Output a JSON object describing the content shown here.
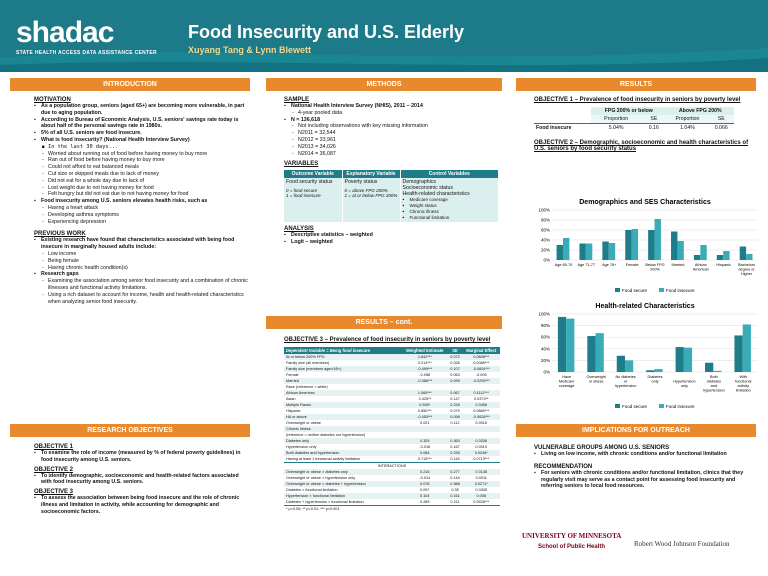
{
  "header": {
    "logo": "shadac",
    "logo_sub": "STATE HEALTH ACCESS DATA ASSISTANCE CENTER",
    "title": "Food Insecurity and U.S. Elderly",
    "authors": "Xuyang Tang & Lynn Blewett"
  },
  "intro": {
    "bar": "INTRODUCTION",
    "motivation_title": "MOTIVATION",
    "m1": "As a population group, seniors (aged 65+) are becoming more vulnerable, in part due to aging population.",
    "m2": "According to Bureau of Economic Analysis, U.S. seniors' savings rate today is about half of the personal savings rate in 1980s.",
    "m3": "5% of all U.S. seniors are food insecure.",
    "m4": "What is food insecurity? (National Health Interview Survey)",
    "m4a": "In the last 30 days...",
    "m4items": [
      "Worried about running out of food before having money to buy more",
      "Ran out of food before having money to buy more",
      "Could not afford to eat balanced meals",
      "Cut size or skipped meals due to lack of money",
      "Did not eat for a whole day due to lack of",
      "Lost weight due to not having money for food",
      "Felt hungry but did not eat due to not having money for food"
    ],
    "m5": "Food insecurity among U.S. seniors elevates health risks, such as",
    "m5items": [
      "Having a heart attack",
      "Developing asthma symptoms",
      "Experiencing depression"
    ],
    "prev_title": "PREVIOUS WORK",
    "p1": "Existing research have found that characteristics associated with being food insecure in marginally housed adults include:",
    "p1items": [
      "Low income",
      "Being female",
      "Having chronic health condition(s)"
    ],
    "p2": "Research gaps",
    "p2items": [
      "Examining the association among senior food insecurity and a combination of chronic illnesses and functional activity limitations.",
      "Using a rich dataset to account for income, health and health-related characteristics when analyzing senior food insecurity."
    ]
  },
  "objectives": {
    "bar": "RESEARCH OBJECTIVES",
    "o1t": "OBJECTIVE 1",
    "o1": "To examine the role of income (measured by % of federal poverty guidelines) in food insecurity among U.S. seniors.",
    "o2t": "OBJECTIVE 2",
    "o2": "To identify demographic, socioeconomic and health-related factors associated with food insecurity among U.S. seniors.",
    "o3t": "OBJECTIVE 3",
    "o3": "To assess the association between being food insecure and the role of chronic illness and limitation in activity, while accounting for demographic and socioeconomic factors."
  },
  "methods": {
    "bar": "METHODS",
    "sample_title": "SAMPLE",
    "s1": "National Health Interview Survey (NHIS), 2011 – 2014",
    "s1a": "4-year pooled data",
    "s2": "N = 136,618",
    "s2items": [
      "Not including observations with key missing information",
      "N2011 = 32,544",
      "N2012 = 33,961",
      "N2013 = 34,026",
      "N2014 = 36,087"
    ],
    "var_title": "VARIABLES",
    "vh": [
      "Outcome Variable",
      "Explanatory Variable",
      "Control Variables"
    ],
    "v1a": "Food security status",
    "v1b": "0 = food secure\n1 = food insecure",
    "v2a": "Poverty status",
    "v2b": "0 = above FPG 200%\n1 = at or below FPG 200%",
    "v3a": "Demographics",
    "v3b": "Socioeconomic status",
    "v3c": "Health-related characteristics",
    "v3items": [
      "Medicare coverage",
      "Weight status",
      "Chronic illness",
      "Functional limitation"
    ],
    "analysis_title": "ANALYSIS",
    "a1": "Descriptive statistics – weighted",
    "a2": "Logit – weighted"
  },
  "results2": {
    "bar": "RESULTS – cont.",
    "obj3": "OBJECTIVE 3 – Prevalence of food insecurity in seniors by poverty level",
    "th": [
      "Dependent Variable = Being food insecure",
      "Weighted Estimate",
      "SE",
      "Marginal Effect"
    ],
    "rows": [
      [
        "At or below 200% FPG",
        "1.842***",
        "0.072",
        "0.0808***"
      ],
      [
        "Family size (all members)",
        "0.214***",
        "0.026",
        "0.0085***"
      ],
      [
        "Family size (members aged 65+)",
        "-0.499***",
        "0.107",
        "-0.0604***"
      ],
      [
        "Female",
        "-0.058",
        "0.063",
        "-0.005"
      ],
      [
        "Married",
        "-0.366***",
        "0.099",
        "-0.0295***"
      ],
      [
        "Race (reference = white)",
        "",
        "",
        ""
      ],
      [
        "African American",
        "1.065***",
        "0.067",
        "0.1112***"
      ],
      [
        "Asian",
        "0.425**",
        "0.147",
        "0.0373**"
      ],
      [
        "Multiple Races",
        "0.505*",
        "0.228",
        "0.0456"
      ],
      [
        "Hispanic",
        "0.850***",
        "0.079",
        "0.0860***"
      ],
      [
        "HA or above",
        "-0.453***",
        "0.098",
        "-0.0628***"
      ],
      [
        "Overweight or obese",
        "0.021",
        "0.112",
        "0.0016"
      ],
      [
        "Chronic illness",
        "",
        "",
        ""
      ],
      [
        "(reference = neither diabetes nor hypertension)",
        "",
        "",
        ""
      ],
      [
        "Diabetes only",
        "0.329",
        "0.363",
        "0.0208"
      ],
      [
        "Hypertension only",
        "-0.016",
        "0.167",
        "0.0019"
      ],
      [
        "Both diabetes and hypertension",
        "0.084",
        "0.235",
        "0.0246*"
      ],
      [
        "Having at least 1 functional activity limitation",
        "0.715***",
        "0.115",
        "0.0713***"
      ]
    ],
    "inter": "INTERACTIONS",
    "rows2": [
      [
        "Overweight or obese × diabetes only",
        "0.216",
        "0.277",
        "0.0138"
      ],
      [
        "Overweight or obese × hypertension only",
        "-0.014",
        "0.144",
        "0.0011"
      ],
      [
        "Overweight or obese × diabetes + hypertension",
        "0.076",
        "0.388",
        "0.0271*"
      ],
      [
        "Diabetes × functional limitation",
        "0.097",
        "0.35",
        "0.0345"
      ],
      [
        "Hypertension × functional limitation",
        "0.104",
        "0.161",
        "0.008"
      ],
      [
        "Diabetes + hypertension × functional limitation",
        "0.289",
        "0.211",
        "0.0526***"
      ]
    ],
    "note": "* p<0.05; ** p<0.01; *** p<0.001"
  },
  "results": {
    "bar": "RESULTS",
    "obj1": "OBJECTIVE 1 – Prevalence of food insecurity in seniors by poverty level",
    "t1h": [
      "FPG 200% or below",
      "Above FPG 200%"
    ],
    "t1sub": [
      "Proportion",
      "SE",
      "Proportion",
      "SE"
    ],
    "t1row": [
      "Food insecure",
      "5.04%",
      "0.16",
      "1.04%",
      "0.066"
    ],
    "obj2": "OBJECTIVE 2 – Demographic, socioeconomic and health characteristics of U.S. seniors by food security status"
  },
  "implications": {
    "bar": "IMPLICATIONS FOR OUTREACH",
    "vt": "VULNERABLE GROUPS AMONG U.S. SENIORS",
    "v1": "Living on low income, with chronic conditions and/or functional limitation",
    "rt": "RECOMMENDATION",
    "r1": "For seniors with chronic conditions and/or functional limitation, clinics that they regularly visit may serve as a contact point for assessing food insecurity and referring seniors to local food resources."
  },
  "footer": {
    "umn": "UNIVERSITY OF MINNESOTA",
    "sph": "School of Public Health",
    "rwj": "Robert Wood Johnson Foundation"
  },
  "chart_data": [
    {
      "type": "bar",
      "title": "Demographics and SES Characteristics",
      "categories": [
        "Age 65-70",
        "Age 71-77",
        "Age 78+",
        "Female",
        "Below FPG 200%",
        "Married",
        "African American",
        "Hispanic",
        "Bachelors degree or Higher"
      ],
      "series": [
        {
          "name": "Food secure",
          "values": [
            30,
            33,
            37,
            60,
            60,
            57,
            10,
            10,
            27
          ]
        },
        {
          "name": "Food insecure",
          "values": [
            44,
            33,
            34,
            62,
            82,
            38,
            30,
            18,
            12
          ]
        }
      ],
      "ylim": [
        0,
        100
      ],
      "yticks": [
        "0%",
        "20%",
        "40%",
        "60%",
        "80%",
        "100%"
      ],
      "colors": [
        "#1f7d8a",
        "#3aacb8"
      ]
    },
    {
      "type": "bar",
      "title": "Health-related Characteristics",
      "categories": [
        "Have Medicare coverage",
        "Overweight or obese",
        "No diabetes or hypertension",
        "Diabetes only",
        "Hypertension only",
        "Both diabetes and hypertension",
        "With functional activity limitation"
      ],
      "series": [
        {
          "name": "Food secure",
          "values": [
            95,
            62,
            28,
            3,
            43,
            16,
            63
          ]
        },
        {
          "name": "Food insecure",
          "values": [
            92,
            67,
            20,
            5,
            42,
            2,
            82
          ]
        }
      ],
      "ylim": [
        0,
        100
      ],
      "yticks": [
        "0%",
        "20%",
        "40%",
        "60%",
        "80%",
        "100%"
      ],
      "colors": [
        "#1f7d8a",
        "#3aacb8"
      ]
    }
  ]
}
